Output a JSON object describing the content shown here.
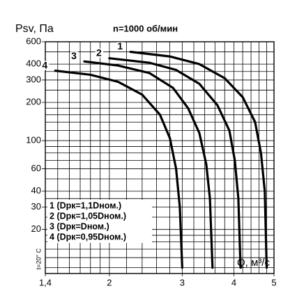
{
  "chart_data": {
    "type": "line",
    "title": "n=1000 об/мин",
    "y_label": "Psv, Па",
    "x_label": "Q, м³/с",
    "side_note": "t=20° C",
    "annotations": [
      "1 (Dрк=1,1Dном.)",
      "2 (Dрк=1,05Dном.)",
      "3 (Dрк=Dном.)",
      "4 (Dрк=0,95Dном.)"
    ],
    "xscale": "log",
    "yscale": "log",
    "grid": true,
    "xlim": [
      1.4,
      5
    ],
    "ylim": [
      9,
      600
    ],
    "xticks": [
      {
        "value": 1.4,
        "label": "1,4"
      },
      2,
      3,
      4,
      5
    ],
    "yticks": [
      600,
      400,
      300,
      200,
      100,
      60,
      40,
      30,
      20
    ],
    "x_minor_grid": [
      1.5,
      1.6,
      1.7,
      1.8,
      1.9,
      2.2,
      2.4,
      2.6,
      2.8,
      3.2,
      3.4,
      3.6,
      3.8,
      4.2,
      4.4,
      4.6,
      4.8
    ],
    "y_minor_grid": [
      500,
      350,
      250,
      180,
      160,
      140,
      120,
      90,
      80,
      70,
      50,
      35,
      25,
      18,
      16,
      14,
      12,
      10
    ],
    "series": [
      {
        "name": "1",
        "color": "#000000",
        "x": [
          2.25,
          2.8,
          3.3,
          3.8,
          4.2,
          4.5,
          4.65,
          4.75,
          4.8
        ],
        "values": [
          500,
          460,
          400,
          310,
          220,
          140,
          80,
          40,
          10
        ]
      },
      {
        "name": "2",
        "color": "#000000",
        "x": [
          2.0,
          2.5,
          2.9,
          3.3,
          3.65,
          3.9,
          4.02,
          4.1,
          4.15
        ],
        "values": [
          445,
          410,
          360,
          280,
          190,
          120,
          70,
          35,
          10
        ]
      },
      {
        "name": "3",
        "color": "#000000",
        "x": [
          1.74,
          2.1,
          2.5,
          2.85,
          3.1,
          3.3,
          3.43,
          3.5,
          3.55
        ],
        "values": [
          420,
          390,
          340,
          260,
          180,
          115,
          65,
          35,
          10
        ]
      },
      {
        "name": "4",
        "color": "#000000",
        "x": [
          1.48,
          1.8,
          2.1,
          2.4,
          2.65,
          2.8,
          2.9,
          2.96,
          3.0
        ],
        "values": [
          355,
          330,
          290,
          230,
          160,
          105,
          60,
          30,
          10
        ]
      }
    ]
  }
}
